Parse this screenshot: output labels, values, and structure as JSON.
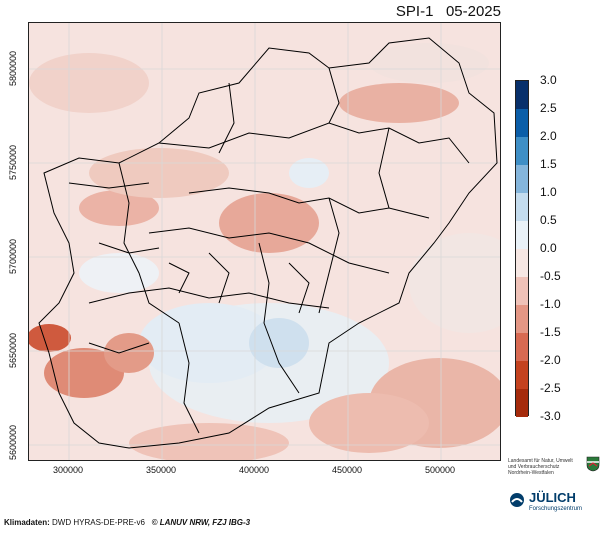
{
  "title": {
    "index": "SPI-1",
    "period": "05-2025"
  },
  "axes": {
    "y_ticks": [
      "5800000",
      "5750000",
      "5700000",
      "5650000",
      "5600000"
    ],
    "x_ticks": [
      "300000",
      "350000",
      "400000",
      "450000",
      "500000"
    ]
  },
  "legend": {
    "labels": [
      "3.0",
      "2.5",
      "2.0",
      "1.5",
      "1.0",
      "0.5",
      "0.0",
      "-0.5",
      "-1.0",
      "-1.5",
      "-2.0",
      "-2.5",
      "-3.0"
    ],
    "colors": [
      "#08306b",
      "#0b5ea8",
      "#3f8fc6",
      "#85b6dc",
      "#c4dcee",
      "#e9f1f7",
      "#f6e7e3",
      "#efc2b8",
      "#e49785",
      "#d86a52",
      "#c4421f",
      "#a52b0c",
      "#7a1a05"
    ]
  },
  "footer": {
    "label": "Klimadaten:",
    "source": " DWD HYRAS-DE-PRE-v6",
    "copyright": "© LANUV NRW, FZJ IBG-3"
  },
  "logos": {
    "lanuv": "Landesamt für Natur, Umwelt und Verbraucherschutz Nordrhein-Westfalen",
    "julich_name": "JÜLICH",
    "julich_sub": "Forschungszentrum"
  }
}
